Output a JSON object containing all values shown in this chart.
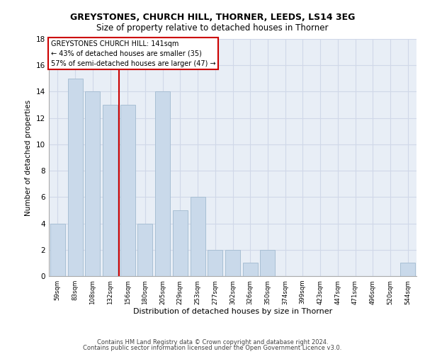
{
  "title1": "GREYSTONES, CHURCH HILL, THORNER, LEEDS, LS14 3EG",
  "title2": "Size of property relative to detached houses in Thorner",
  "xlabel": "Distribution of detached houses by size in Thorner",
  "ylabel": "Number of detached properties",
  "bar_values": [
    4,
    15,
    14,
    13,
    13,
    4,
    14,
    5,
    6,
    2,
    2,
    1,
    2,
    0,
    0,
    0,
    0,
    0,
    0,
    0,
    1
  ],
  "bar_labels": [
    "59sqm",
    "83sqm",
    "108sqm",
    "132sqm",
    "156sqm",
    "180sqm",
    "205sqm",
    "229sqm",
    "253sqm",
    "277sqm",
    "302sqm",
    "326sqm",
    "350sqm",
    "374sqm",
    "399sqm",
    "423sqm",
    "447sqm",
    "471sqm",
    "496sqm",
    "520sqm",
    "544sqm"
  ],
  "bar_color": "#c9d9ea",
  "bar_edge_color": "#a8bfd4",
  "vline_x": 3.5,
  "vline_color": "#cc0000",
  "annotation_title": "GREYSTONES CHURCH HILL: 141sqm",
  "annotation_line1": "← 43% of detached houses are smaller (35)",
  "annotation_line2": "57% of semi-detached houses are larger (47) →",
  "annotation_box_color": "#cc0000",
  "annotation_fill": "#ffffff",
  "ylim": [
    0,
    18
  ],
  "yticks": [
    0,
    2,
    4,
    6,
    8,
    10,
    12,
    14,
    16,
    18
  ],
  "grid_color": "#d0d8e8",
  "background_color": "#e8eef6",
  "footer1": "Contains HM Land Registry data © Crown copyright and database right 2024.",
  "footer2": "Contains public sector information licensed under the Open Government Licence v3.0."
}
